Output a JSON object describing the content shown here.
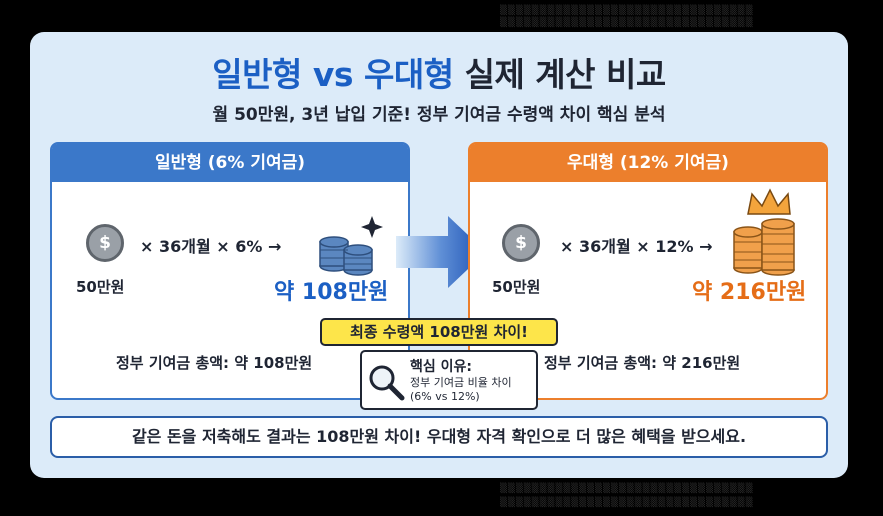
{
  "title": {
    "part1": "일반형",
    "vs": " vs ",
    "part2": "우대형",
    "rest": " 실제 계산 비교"
  },
  "subtitle": "월 50만원, 3년 납입 기준! 정부 기여금 수령액 차이 핵심 분석",
  "left_panel": {
    "header": "일반형 (6% 기여금)",
    "coin_symbol": "$",
    "coin_label": "50만원",
    "formula": "× 36개월  × 6% →",
    "result": "약 108만원",
    "total": "정부 기여금 총액: 약 108만원"
  },
  "right_panel": {
    "header": "우대형 (12% 기여금)",
    "coin_symbol": "$",
    "coin_label": "50만원",
    "formula": "× 36개월  × 12% →",
    "result": "약 216만원",
    "total": "정부 기여금 총액: 약 216만원"
  },
  "callout": "최종 수령액 108만원 차이!",
  "reason": {
    "title": "핵심 이유:",
    "line1": "정부 기여금 비율 차이",
    "line2": "(6% vs 12%)"
  },
  "footer": "같은 돈을 저축해도 결과는 108만원 차이! 우대형 자격 확인으로 더 많은 혜택을 받으세요.",
  "colors": {
    "blue": "#3b78c9",
    "orange": "#ec7f2c",
    "title_blue": "#1b5fc4",
    "callout_yellow": "#fde54a"
  },
  "icons": [
    "coin-icon",
    "coin-stack-icon",
    "sparkle-icon",
    "crown-icon",
    "arrow-right-icon",
    "magnifier-icon"
  ]
}
